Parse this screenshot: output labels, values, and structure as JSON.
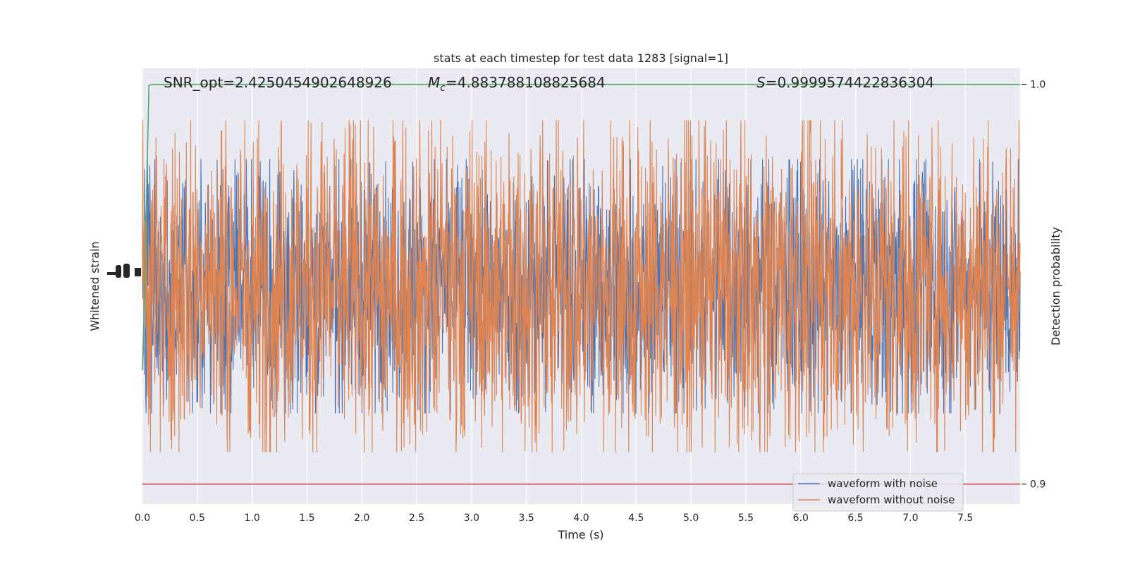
{
  "chart_data": {
    "type": "line",
    "title": "stats at each timestep for test data 1283 [signal=1]",
    "xlabel": "Time (s)",
    "ylabel_left": "Whitened strain",
    "ylabel_right": "Detection probability",
    "xlim": [
      0.0,
      8.0
    ],
    "x_ticks": [
      "0.0",
      "0.5",
      "1.0",
      "1.5",
      "2.0",
      "2.5",
      "3.0",
      "3.5",
      "4.0",
      "4.5",
      "5.0",
      "5.5",
      "6.0",
      "6.5",
      "7.0",
      "7.5"
    ],
    "x_tick_values": [
      0.0,
      0.5,
      1.0,
      1.5,
      2.0,
      2.5,
      3.0,
      3.5,
      4.0,
      4.5,
      5.0,
      5.5,
      6.0,
      6.5,
      7.0,
      7.5
    ],
    "right_ylim": [
      0.895,
      1.004
    ],
    "right_ticks": [
      "0.9",
      "1.0"
    ],
    "right_tick_values": [
      0.9,
      1.0
    ],
    "threshold": 0.9,
    "grid": true,
    "legend_position": "lower-right",
    "annotations": {
      "snr": "SNR_opt=2.4250454902648926",
      "mc_symbol": "M",
      "mc_subscript": "c",
      "mc_value": "=4.883788108825684",
      "s_symbol": "S",
      "s_value": "=0.9999574422836304"
    },
    "series": [
      {
        "name": "waveform with noise",
        "color": "#4c72b0",
        "axis": "left",
        "kind": "noise-trace"
      },
      {
        "name": "waveform without noise",
        "color": "#dd8452",
        "axis": "left",
        "kind": "noise-trace",
        "amplitude_range": [
          -1,
          1
        ]
      },
      {
        "color": "#55a868",
        "axis": "right",
        "x": [
          0.0,
          0.02,
          0.04,
          0.06,
          0.1,
          0.3,
          1.0,
          3.0,
          5.0,
          7.0,
          8.0
        ],
        "y": [
          0.9285,
          0.9475,
          0.975,
          0.9998,
          1.0,
          1.0,
          1.0,
          1.0,
          1.0,
          1.0,
          1.0
        ]
      },
      {
        "color": "#c44e52",
        "axis": "right",
        "x": [
          0.0,
          8.0
        ],
        "y": [
          0.9,
          0.9
        ]
      }
    ]
  }
}
